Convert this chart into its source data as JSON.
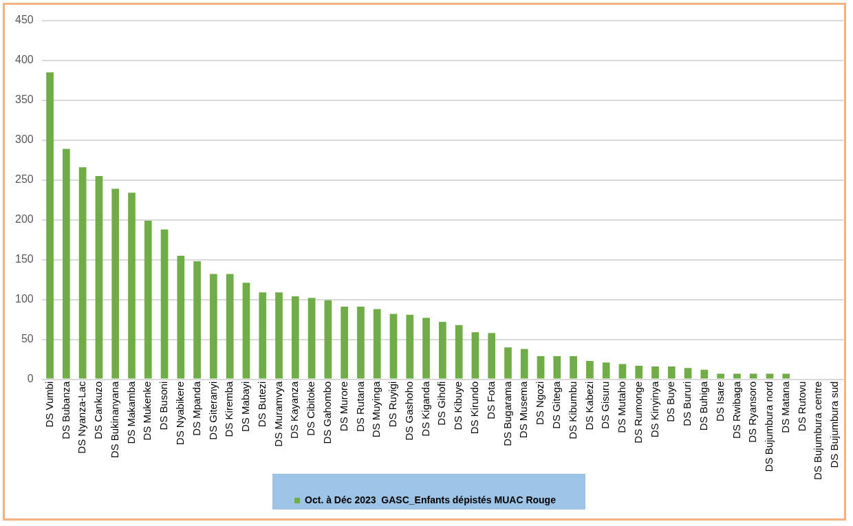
{
  "chart_data": {
    "type": "bar",
    "categories": [
      "DS Vumbi",
      "DS Bubanza",
      "DS Nyanza-Lac",
      "DS Cankuzo",
      "DS Bukinanyana",
      "DS Makamba",
      "DS Mukenke",
      "DS Busoni",
      "DS Nyabikere",
      "DS Mpanda",
      "DS Giteranyi",
      "DS Kiremba",
      "DS Mabayi",
      "DS Butezi",
      "DS Muramvya",
      "DS Kayanza",
      "DS Cibitoke",
      "DS Gahombo",
      "DS Murore",
      "DS Rutana",
      "DS Muyinga",
      "DS Ruyigi",
      "DS Gashoho",
      "DS Kiganda",
      "DS Gihofi",
      "DS Kibuye",
      "DS Kirundo",
      "DS Fota",
      "DS Bugarama",
      "DS Musema",
      "DS Ngozi",
      "DS Gitega",
      "DS Kibumbu",
      "DS Kabezi",
      "DS Gisuru",
      "DS Mutaho",
      "DS Rumonge",
      "DS Kinyinya",
      "DS Buye",
      "DS Bururi",
      "DS Buhiga",
      "DS Isare",
      "DS Rwibaga",
      "DS Ryansoro",
      "DS Bujumbura nord",
      "DS Matana",
      "DS Rutovu",
      "DS Bujumbura centre",
      "DS Bujumbura sud"
    ],
    "series": [
      {
        "name": "Oct. à Déc 2023  GASC_Enfants dépistés MUAC Rouge",
        "color": "#70ad47",
        "values": [
          385,
          289,
          266,
          255,
          239,
          234,
          199,
          188,
          155,
          148,
          132,
          132,
          121,
          109,
          109,
          104,
          102,
          99,
          91,
          91,
          88,
          82,
          81,
          77,
          72,
          68,
          59,
          58,
          40,
          38,
          29,
          29,
          29,
          23,
          21,
          19,
          17,
          16,
          16,
          14,
          12,
          7,
          7,
          7,
          7,
          7,
          0,
          0,
          0
        ]
      }
    ],
    "ylim": [
      0,
      450
    ],
    "yticks": [
      0,
      50,
      100,
      150,
      200,
      250,
      300,
      350,
      400,
      450
    ],
    "grid": "y",
    "legend": "bottom"
  }
}
